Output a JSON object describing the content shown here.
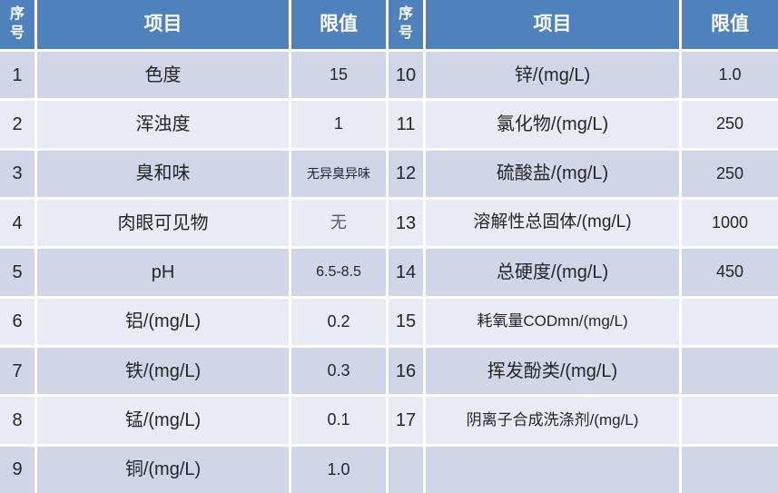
{
  "colors": {
    "hdr": "#4f81bd",
    "band1": "#d0d6e7",
    "band2": "#e9ebf4",
    "hdrtext": "#ffffff",
    "text": "#262626",
    "muted": "#595959"
  },
  "table": {
    "header": {
      "no": "序号",
      "item": "项目",
      "limit": "限值"
    },
    "left_rows": [
      {
        "no": "1",
        "item": "色度",
        "limit": "15"
      },
      {
        "no": "2",
        "item": "浑浊度",
        "limit": "1"
      },
      {
        "no": "3",
        "item": "臭和味",
        "limit": "无异臭异味"
      },
      {
        "no": "4",
        "item": "肉眼可见物",
        "limit": "无"
      },
      {
        "no": "5",
        "item": "pH",
        "limit": "6.5-8.5"
      },
      {
        "no": "6",
        "item": "铝/(mg/L)",
        "limit": "0.2"
      },
      {
        "no": "7",
        "item": "铁/(mg/L)",
        "limit": "0.3"
      },
      {
        "no": "8",
        "item": "锰/(mg/L)",
        "limit": "0.1"
      },
      {
        "no": "9",
        "item": "铜/(mg/L)",
        "limit": "1.0"
      }
    ],
    "right_rows": [
      {
        "no": "10",
        "item": "锌/(mg/L)",
        "limit": "1.0"
      },
      {
        "no": "11",
        "item": "氯化物/(mg/L)",
        "limit": "250"
      },
      {
        "no": "12",
        "item": "硫酸盐/(mg/L)",
        "limit": "250"
      },
      {
        "no": "13",
        "item": "溶解性总固体/(mg/L)",
        "limit": "1000"
      },
      {
        "no": "14",
        "item": "总硬度/(mg/L)",
        "limit": "450"
      },
      {
        "no": "15",
        "item": "耗氧量CODmn/(mg/L)",
        "limit": ""
      },
      {
        "no": "16",
        "item": "挥发酚类/(mg/L)",
        "limit": ""
      },
      {
        "no": "17",
        "item": "阴离子合成洗涤剂/(mg/L)",
        "limit": ""
      },
      {
        "no": "",
        "item": "",
        "limit": ""
      }
    ]
  },
  "chart_data": {
    "type": "table",
    "title": "",
    "columns": [
      "序号",
      "项目",
      "限值"
    ],
    "layout": "two side-by-side panels, banded rows, blue header",
    "rows": [
      [
        "1",
        "色度",
        "15"
      ],
      [
        "2",
        "浑浊度",
        "1"
      ],
      [
        "3",
        "臭和味",
        "无异臭异味"
      ],
      [
        "4",
        "肉眼可见物",
        "无"
      ],
      [
        "5",
        "pH",
        "6.5-8.5"
      ],
      [
        "6",
        "铝/(mg/L)",
        "0.2"
      ],
      [
        "7",
        "铁/(mg/L)",
        "0.3"
      ],
      [
        "8",
        "锰/(mg/L)",
        "0.1"
      ],
      [
        "9",
        "铜/(mg/L)",
        "1.0"
      ],
      [
        "10",
        "锌/(mg/L)",
        "1.0"
      ],
      [
        "11",
        "氯化物/(mg/L)",
        "250"
      ],
      [
        "12",
        "硫酸盐/(mg/L)",
        "250"
      ],
      [
        "13",
        "溶解性总固体/(mg/L)",
        "1000"
      ],
      [
        "14",
        "总硬度/(mg/L)",
        "450"
      ],
      [
        "15",
        "耗氧量CODmn/(mg/L)",
        ""
      ],
      [
        "16",
        "挥发酚类/(mg/L)",
        ""
      ],
      [
        "17",
        "阴离子合成洗涤剂/(mg/L)",
        ""
      ]
    ]
  }
}
